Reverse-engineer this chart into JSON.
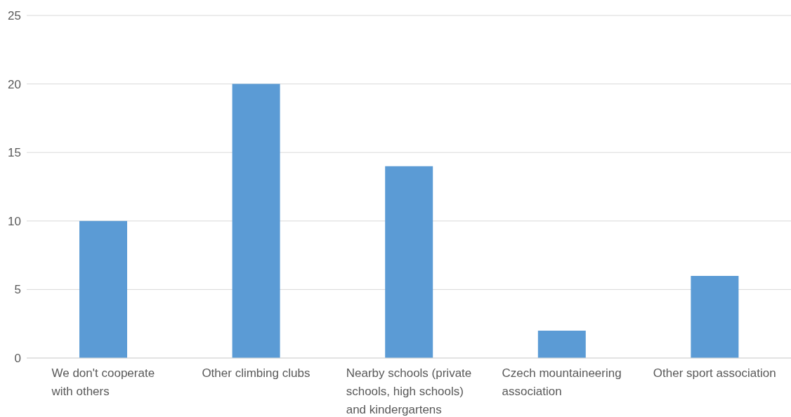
{
  "chart_data": {
    "type": "bar",
    "categories": [
      "We don't cooperate with others",
      "Other climbing clubs",
      "Nearby schools (private schools, high schools) and kindergartens",
      "Czech mountaineering association",
      "Other sport association"
    ],
    "values": [
      10,
      20,
      14,
      2,
      6
    ],
    "color": "#5b9bd5",
    "ylim": [
      0,
      25
    ],
    "yticks": [
      0,
      5,
      10,
      15,
      20,
      25
    ],
    "grid": "y"
  }
}
